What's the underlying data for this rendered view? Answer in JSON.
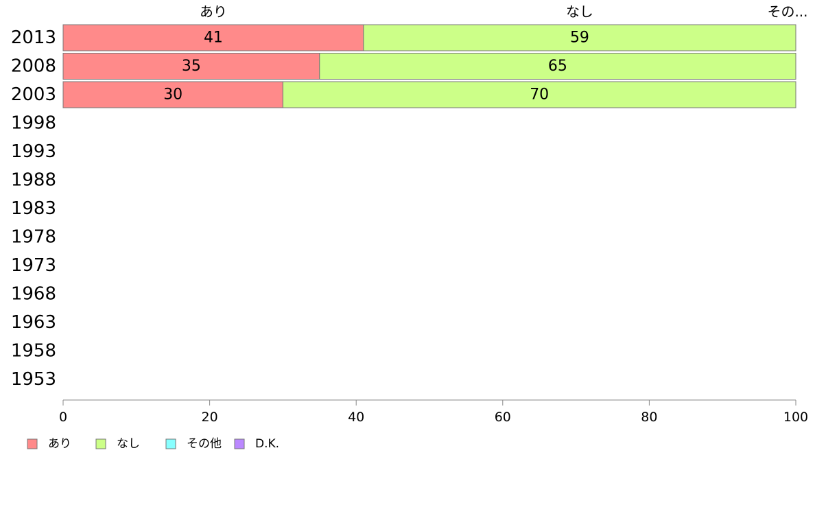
{
  "chart_data": {
    "type": "bar",
    "orientation": "horizontal",
    "stacked": true,
    "categories": [
      "2013",
      "2008",
      "2003",
      "1998",
      "1993",
      "1988",
      "1983",
      "1978",
      "1973",
      "1968",
      "1963",
      "1958",
      "1953"
    ],
    "series": [
      {
        "name": "あり",
        "color": "#ff8a8a",
        "values": [
          41,
          35,
          30,
          null,
          null,
          null,
          null,
          null,
          null,
          null,
          null,
          null,
          null
        ]
      },
      {
        "name": "なし",
        "color": "#ccff88",
        "values": [
          59,
          65,
          70,
          null,
          null,
          null,
          null,
          null,
          null,
          null,
          null,
          null,
          null
        ]
      },
      {
        "name": "その他",
        "color": "#88ffff",
        "values": [
          0,
          0,
          0,
          null,
          null,
          null,
          null,
          null,
          null,
          null,
          null,
          null,
          null
        ]
      },
      {
        "name": "D.K.",
        "color": "#bb88ff",
        "values": [
          0,
          0,
          0,
          null,
          null,
          null,
          null,
          null,
          null,
          null,
          null,
          null,
          null
        ]
      }
    ],
    "top_category_labels": [
      "あり",
      "なし",
      "その..."
    ],
    "x_ticks": [
      "0",
      "20",
      "40",
      "60",
      "80",
      "100"
    ],
    "xlim": [
      0,
      100
    ],
    "grid": false,
    "legend_position": "bottom-left",
    "title": "",
    "xlabel": "",
    "ylabel": ""
  }
}
